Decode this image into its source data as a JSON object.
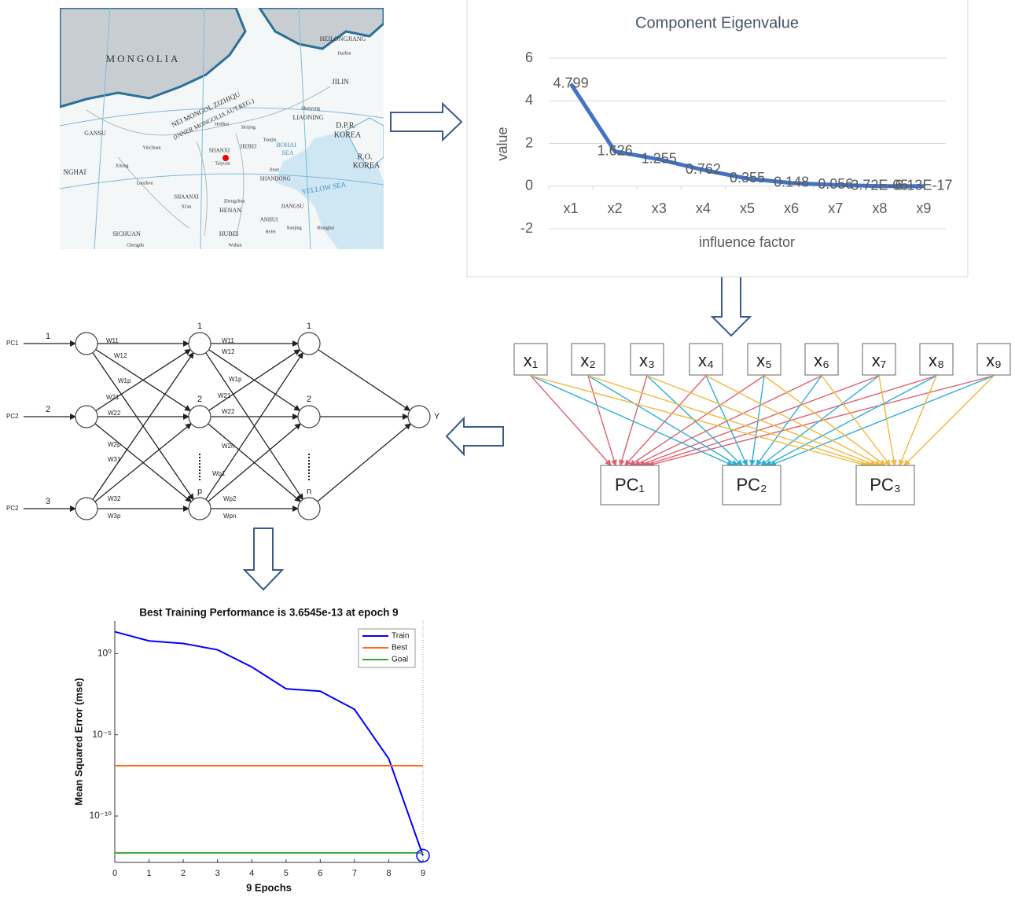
{
  "map": {
    "labels": [
      "MONGOLIA",
      "HEILONGJIANG",
      "JILIN",
      "NEI MONGOL ZIZHIQU",
      "(INNER MONGOLIA AUT.REG.)",
      "LIAONING",
      "D.P.R.",
      "KOREA",
      "R.O.",
      "KOREA",
      "GANSU",
      "NGHAI",
      "SHANXI",
      "Taiyuan",
      "HEBEI",
      "BOHAI",
      "SEA",
      "SHANDONG",
      "YELLOW SEA",
      "SHAANXI",
      "HENAN",
      "ANHUI",
      "JIANGSU",
      "SICHUAN",
      "HUBEI",
      "Harbin",
      "Shenyang",
      "Hohhot",
      "Beijing",
      "Tianjin",
      "Xi'an",
      "Zhengzhou",
      "Chengdu",
      "Wuhan",
      "Hefei",
      "Nanjing",
      "Shanghai",
      "Lanzhou",
      "Xining",
      "Jinan",
      "Yinchuan"
    ]
  },
  "chart_data": [
    {
      "type": "line",
      "title": "Component Eigenvalue",
      "x_label": "influence factor",
      "y_label": "value",
      "categories": [
        "x1",
        "x2",
        "x3",
        "x4",
        "x5",
        "x6",
        "x7",
        "x8",
        "x9"
      ],
      "values": [
        4.799,
        1.626,
        1.255,
        0.762,
        0.355,
        0.148,
        0.056,
        3.72e-05,
        6.13e-17
      ],
      "value_labels": [
        "4.799",
        "1.626",
        "1.255",
        "0.762",
        "0.355",
        "0.148",
        "0.056",
        "3.72E-05",
        "6.13E-17"
      ],
      "color": "#4472c4",
      "ylim": [
        -2,
        6
      ],
      "yticks": [
        -2,
        0,
        2,
        4,
        6
      ],
      "grid": true
    },
    {
      "type": "line",
      "title": "Best Training Performance is 3.6545e-13 at epoch 9",
      "x_label": "9 Epochs",
      "y_label": "Mean Squared Error  (mse)",
      "log_y": true,
      "legend": "upper right",
      "x": [
        0,
        1,
        2,
        3,
        4,
        5,
        6,
        7,
        8,
        9
      ],
      "series": [
        {
          "name": "Train",
          "color": "#0000ff",
          "values": [
            22,
            6,
            4.2,
            1.7,
            0.15,
            0.0068,
            0.0048,
            0.00037,
            3.4e-07,
            3.6545e-13
          ]
        },
        {
          "name": "Best",
          "color": "#ff6c1a",
          "values": [
            1.26e-07,
            1.26e-07,
            1.26e-07,
            1.26e-07,
            1.26e-07,
            1.26e-07,
            1.26e-07,
            1.26e-07,
            1.26e-07,
            1.26e-07
          ]
        },
        {
          "name": "Goal",
          "color": "#3aa53a",
          "values": [
            5.4e-13,
            5.4e-13,
            5.4e-13,
            5.4e-13,
            5.4e-13,
            5.4e-13,
            5.4e-13,
            5.4e-13,
            5.4e-13,
            5.4e-13
          ]
        }
      ],
      "xlim": [
        0,
        9
      ],
      "xticks": [
        0,
        1,
        2,
        3,
        4,
        5,
        6,
        7,
        8,
        9
      ],
      "ylim": [
        1.4e-13,
        100
      ],
      "yticks": [
        {
          "value": 1e-10,
          "label": "10⁻¹⁰"
        },
        {
          "value": 1e-05,
          "label": "10⁻⁵"
        },
        {
          "value": 1,
          "label": "10⁰"
        }
      ]
    }
  ],
  "pca": {
    "factors": [
      "x₁",
      "x₂",
      "x₃",
      "x₄",
      "x₅",
      "x₆",
      "x₇",
      "x₈",
      "x₉"
    ],
    "components": [
      "PC₁",
      "PC₂",
      "PC₃"
    ]
  },
  "network": {
    "inputs": [
      "PC1",
      "PC2",
      "PC2"
    ],
    "input_numbers": [
      "1",
      "2",
      "3"
    ],
    "hidden1": [
      "1",
      "2",
      "p"
    ],
    "hidden2": [
      "1",
      "2",
      "n"
    ],
    "output": "Y",
    "weights1": [
      "W11",
      "W12",
      "W1p",
      "W21",
      "W22",
      "W2p",
      "W31",
      "W32",
      "W3p"
    ],
    "weights2": [
      "W11",
      "W12",
      "W1p",
      "W21",
      "W22",
      "W2n",
      "Wp1",
      "Wp2",
      "Wpn"
    ]
  }
}
